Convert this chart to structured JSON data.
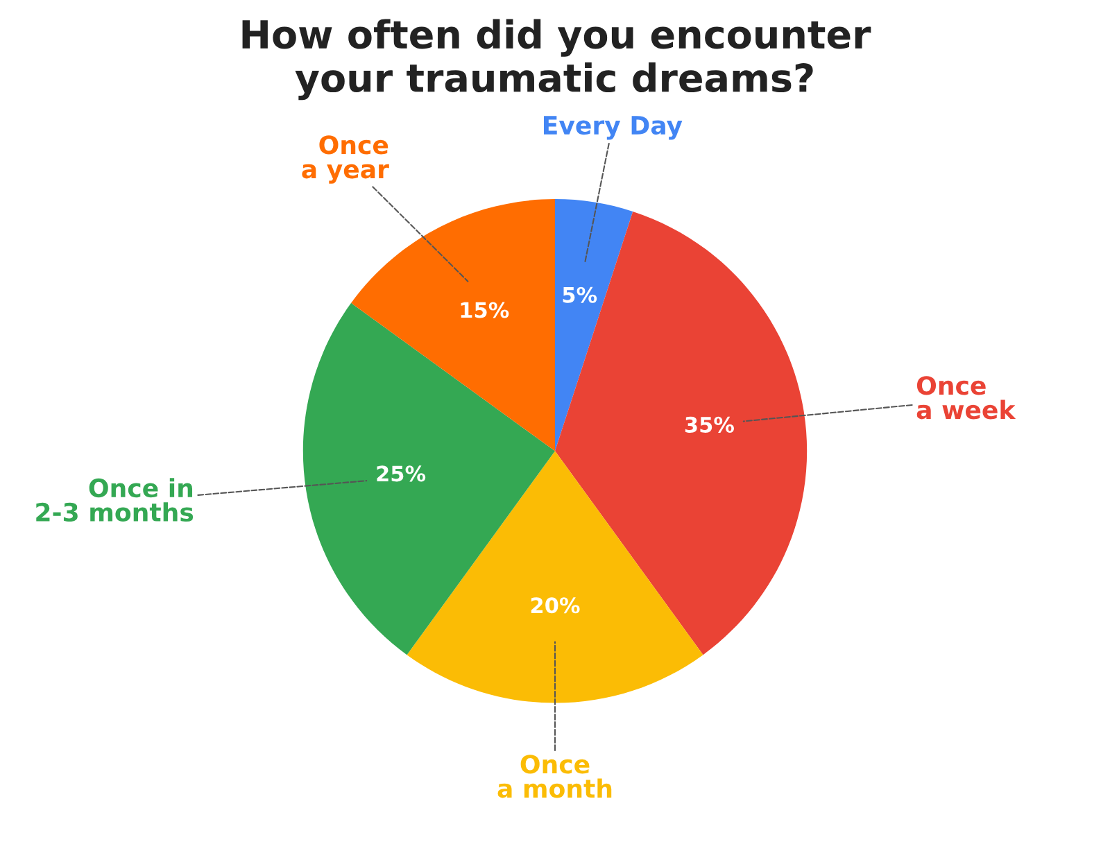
{
  "chart_data": {
    "type": "pie",
    "title": "How often did you encounter\nyour traumatic dreams?",
    "categories": [
      "Every Day",
      "Once\na week",
      "Once\na month",
      "Once in\n2-3 months",
      "Once\na year"
    ],
    "values": [
      5,
      35,
      20,
      25,
      15
    ],
    "colors": [
      "#4285f4",
      "#ea4335",
      "#fbbc05",
      "#34a853",
      "#ff6d01"
    ],
    "value_labels": [
      "5%",
      "35%",
      "20%",
      "25%",
      "15%"
    ]
  }
}
